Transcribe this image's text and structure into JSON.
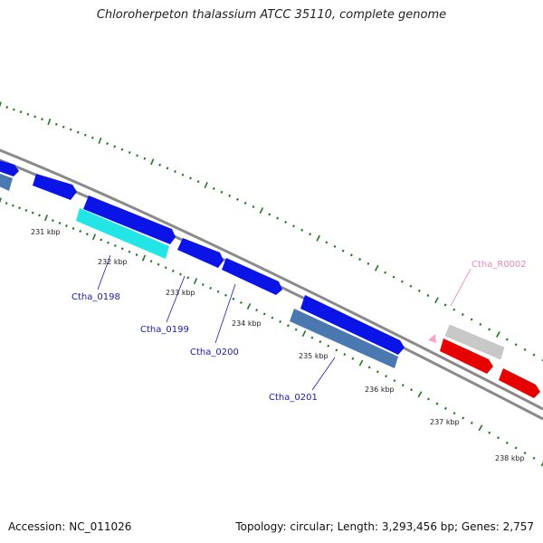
{
  "title": "Chloroherpeton thalassium ATCC 35110, complete genome",
  "footer": {
    "accession": "Accession: NC_011026",
    "topology": "Topology: circular; Length: 3,293,456 bp; Genes: 2,757"
  },
  "colors": {
    "backbone": "#8a8a8a",
    "ticks": "#1f7a1f",
    "cds_forward": "#0a14e6",
    "cds_reverse": "#e60000",
    "cds_steelblue": "#4a78b0",
    "cds_cyan": "#22e6e6",
    "cds_gray": "#c8c8c8",
    "rna": "#f5a6cf",
    "label_blue": "#1a1aa8",
    "label_pink": "#e888b8"
  },
  "scale_labels": [
    "231 kbp",
    "232 kbp",
    "233 kbp",
    "234 kbp",
    "235 kbp",
    "236 kbp",
    "237 kbp",
    "238 kbp"
  ],
  "gene_labels": [
    "Ctha_0198",
    "Ctha_0199",
    "Ctha_0200",
    "Ctha_0201",
    "Ctha_R0002"
  ]
}
